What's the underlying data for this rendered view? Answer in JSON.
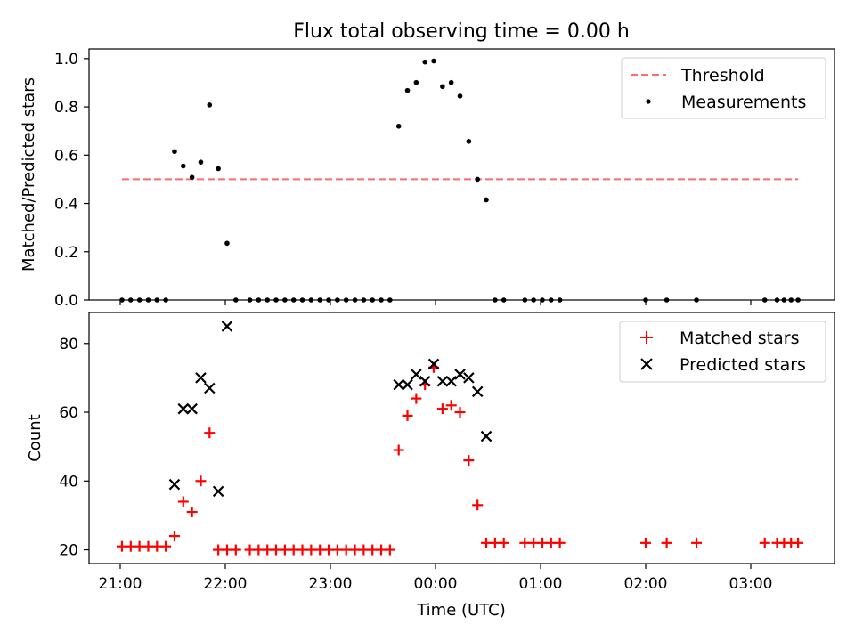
{
  "chart_data": [
    {
      "type": "scatter",
      "title": "Flux total observing time = 0.00 h",
      "xlabel": "",
      "ylabel": "Matched/Predicted stars",
      "x_axis_type": "time",
      "xlim": [
        "20:50",
        "03:50"
      ],
      "ylim": [
        0,
        1.04
      ],
      "yticks": [
        "0.0",
        "0.2",
        "0.4",
        "0.6",
        "0.8",
        "1.0"
      ],
      "xticks": [
        "21:00",
        "22:00",
        "23:00",
        "00:00",
        "01:00",
        "02:00",
        "03:00"
      ],
      "legend_position": "upper right",
      "legend": [
        "Threshold",
        "Measurements"
      ],
      "threshold": {
        "name": "Threshold",
        "value": 0.5,
        "x_start": "21:01",
        "x_end": "03:27",
        "color": "#ff6b6b",
        "style": "dashed"
      },
      "series": [
        {
          "name": "Measurements",
          "color": "#000000",
          "marker": "dot",
          "points": [
            [
              "21:01",
              0
            ],
            [
              "21:06",
              0
            ],
            [
              "21:11",
              0
            ],
            [
              "21:16",
              0
            ],
            [
              "21:21",
              0
            ],
            [
              "21:26",
              0
            ],
            [
              "21:31",
              0.615
            ],
            [
              "21:36",
              0.555
            ],
            [
              "21:41",
              0.508
            ],
            [
              "21:46",
              0.571
            ],
            [
              "21:51",
              0.808
            ],
            [
              "21:56",
              0.544
            ],
            [
              "22:01",
              0.235
            ],
            [
              "22:06",
              0
            ],
            [
              "22:14",
              0
            ],
            [
              "22:19",
              0
            ],
            [
              "22:24",
              0
            ],
            [
              "22:29",
              0
            ],
            [
              "22:34",
              0
            ],
            [
              "22:39",
              0
            ],
            [
              "22:44",
              0
            ],
            [
              "22:49",
              0
            ],
            [
              "22:54",
              0
            ],
            [
              "22:59",
              0
            ],
            [
              "23:04",
              0
            ],
            [
              "23:09",
              0
            ],
            [
              "23:14",
              0
            ],
            [
              "23:19",
              0
            ],
            [
              "23:24",
              0
            ],
            [
              "23:29",
              0
            ],
            [
              "23:34",
              0
            ],
            [
              "23:39",
              0.72
            ],
            [
              "23:44",
              0.868
            ],
            [
              "23:49",
              0.901
            ],
            [
              "23:54",
              0.986
            ],
            [
              "23:59",
              0.99
            ],
            [
              "00:04",
              0.884
            ],
            [
              "00:09",
              0.901
            ],
            [
              "00:14",
              0.845
            ],
            [
              "00:19",
              0.657
            ],
            [
              "00:24",
              0.5
            ],
            [
              "00:29",
              0.415
            ],
            [
              "00:34",
              0
            ],
            [
              "00:39",
              0
            ],
            [
              "00:51",
              0
            ],
            [
              "00:56",
              0
            ],
            [
              "01:01",
              0
            ],
            [
              "01:06",
              0
            ],
            [
              "01:11",
              0
            ],
            [
              "02:00",
              0
            ],
            [
              "02:12",
              0
            ],
            [
              "02:29",
              0
            ],
            [
              "03:08",
              0
            ],
            [
              "03:15",
              0
            ],
            [
              "03:19",
              0
            ],
            [
              "03:23",
              0
            ],
            [
              "03:27",
              0
            ]
          ]
        }
      ]
    },
    {
      "type": "scatter",
      "title": "",
      "xlabel": "Time (UTC)",
      "ylabel": "Count",
      "x_axis_type": "time",
      "xlim": [
        "20:50",
        "03:50"
      ],
      "ylim": [
        16,
        89
      ],
      "yticks": [
        "20",
        "40",
        "60",
        "80"
      ],
      "xticks": [
        "21:00",
        "22:00",
        "23:00",
        "00:00",
        "01:00",
        "02:00",
        "03:00"
      ],
      "legend_position": "upper right",
      "legend": [
        "Matched stars",
        "Predicted stars"
      ],
      "series": [
        {
          "name": "Matched stars",
          "color": "#ff0000",
          "marker": "plus",
          "points": [
            [
              "21:01",
              21
            ],
            [
              "21:06",
              21
            ],
            [
              "21:11",
              21
            ],
            [
              "21:16",
              21
            ],
            [
              "21:21",
              21
            ],
            [
              "21:26",
              21
            ],
            [
              "21:31",
              24
            ],
            [
              "21:36",
              34
            ],
            [
              "21:41",
              31
            ],
            [
              "21:46",
              40
            ],
            [
              "21:51",
              54
            ],
            [
              "21:56",
              20
            ],
            [
              "22:01",
              20
            ],
            [
              "22:06",
              20
            ],
            [
              "22:14",
              20
            ],
            [
              "22:19",
              20
            ],
            [
              "22:24",
              20
            ],
            [
              "22:29",
              20
            ],
            [
              "22:34",
              20
            ],
            [
              "22:39",
              20
            ],
            [
              "22:44",
              20
            ],
            [
              "22:49",
              20
            ],
            [
              "22:54",
              20
            ],
            [
              "22:59",
              20
            ],
            [
              "23:04",
              20
            ],
            [
              "23:09",
              20
            ],
            [
              "23:14",
              20
            ],
            [
              "23:19",
              20
            ],
            [
              "23:24",
              20
            ],
            [
              "23:29",
              20
            ],
            [
              "23:34",
              20
            ],
            [
              "23:39",
              49
            ],
            [
              "23:44",
              59
            ],
            [
              "23:49",
              64
            ],
            [
              "23:54",
              68
            ],
            [
              "23:59",
              73
            ],
            [
              "00:04",
              61
            ],
            [
              "00:09",
              62
            ],
            [
              "00:14",
              60
            ],
            [
              "00:19",
              46
            ],
            [
              "00:24",
              33
            ],
            [
              "00:29",
              22
            ],
            [
              "00:34",
              22
            ],
            [
              "00:39",
              22
            ],
            [
              "00:51",
              22
            ],
            [
              "00:56",
              22
            ],
            [
              "01:01",
              22
            ],
            [
              "01:06",
              22
            ],
            [
              "01:11",
              22
            ],
            [
              "02:00",
              22
            ],
            [
              "02:12",
              22
            ],
            [
              "02:29",
              22
            ],
            [
              "03:08",
              22
            ],
            [
              "03:15",
              22
            ],
            [
              "03:19",
              22
            ],
            [
              "03:23",
              22
            ],
            [
              "03:27",
              22
            ]
          ]
        },
        {
          "name": "Predicted stars",
          "color": "#000000",
          "marker": "x",
          "points": [
            [
              "21:31",
              39
            ],
            [
              "21:36",
              61
            ],
            [
              "21:41",
              61
            ],
            [
              "21:46",
              70
            ],
            [
              "21:51",
              67
            ],
            [
              "21:56",
              37
            ],
            [
              "22:01",
              85
            ],
            [
              "23:39",
              68
            ],
            [
              "23:44",
              68
            ],
            [
              "23:49",
              71
            ],
            [
              "23:54",
              69
            ],
            [
              "23:59",
              74
            ],
            [
              "00:04",
              69
            ],
            [
              "00:09",
              69
            ],
            [
              "00:14",
              71
            ],
            [
              "00:19",
              70
            ],
            [
              "00:24",
              66
            ],
            [
              "00:29",
              53
            ]
          ]
        }
      ]
    }
  ]
}
